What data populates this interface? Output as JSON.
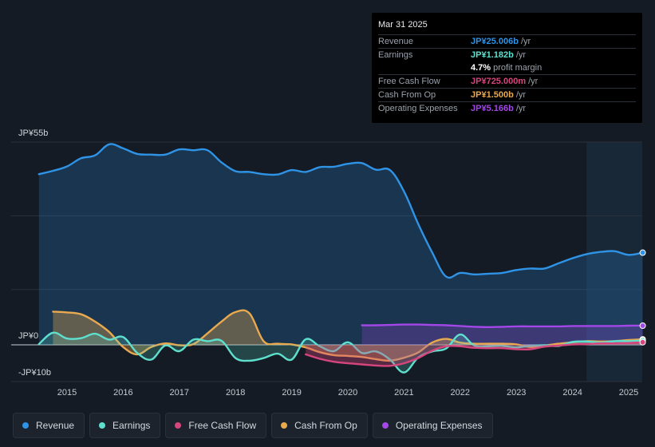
{
  "tooltip": {
    "date": "Mar 31 2025",
    "rows": [
      {
        "label": "Revenue",
        "value": "JP¥25.006b",
        "unit": "/yr",
        "color": "#2f93e6"
      },
      {
        "label": "Earnings",
        "value": "JP¥1.182b",
        "unit": "/yr",
        "color": "#5fe0cf"
      },
      {
        "label": "",
        "value": "4.7%",
        "unit": "profit margin",
        "color": "#ffffff"
      },
      {
        "label": "Free Cash Flow",
        "value": "JP¥725.000m",
        "unit": "/yr",
        "color": "#d6467d"
      },
      {
        "label": "Cash From Op",
        "value": "JP¥1.500b",
        "unit": "/yr",
        "color": "#e8a94f"
      },
      {
        "label": "Operating Expenses",
        "value": "JP¥5.166b",
        "unit": "/yr",
        "color": "#a347e8"
      }
    ]
  },
  "colors": {
    "revenue": "#2f93e6",
    "earnings": "#5fe0cf",
    "fcf": "#d6467d",
    "cfo": "#e8a94f",
    "opex": "#a347e8"
  },
  "legend": [
    {
      "label": "Revenue",
      "color": "#2f93e6"
    },
    {
      "label": "Earnings",
      "color": "#5fe0cf"
    },
    {
      "label": "Free Cash Flow",
      "color": "#d6467d"
    },
    {
      "label": "Cash From Op",
      "color": "#e8a94f"
    },
    {
      "label": "Operating Expenses",
      "color": "#a347e8"
    }
  ],
  "chart_data": {
    "type": "line",
    "title": "",
    "xlabel": "",
    "ylabel": "",
    "y_axis_labels": [
      "JP¥55b",
      "JP¥0",
      "-JP¥10b"
    ],
    "x_ticks": [
      "2015",
      "2016",
      "2017",
      "2018",
      "2019",
      "2020",
      "2021",
      "2022",
      "2023",
      "2024",
      "2025"
    ],
    "xlim": [
      2014.5,
      2025.25
    ],
    "ylim": [
      -10,
      55
    ],
    "forecast_shade_start": 2024.25,
    "series": [
      {
        "name": "Revenue",
        "key": "revenue",
        "fill": true,
        "x": [
          2014.5,
          2014.75,
          2015.0,
          2015.25,
          2015.5,
          2015.75,
          2016.0,
          2016.25,
          2016.5,
          2016.75,
          2017.0,
          2017.25,
          2017.5,
          2017.75,
          2018.0,
          2018.25,
          2018.5,
          2018.75,
          2019.0,
          2019.25,
          2019.5,
          2019.75,
          2020.0,
          2020.25,
          2020.5,
          2020.75,
          2021.0,
          2021.25,
          2021.5,
          2021.75,
          2022.0,
          2022.25,
          2022.5,
          2022.75,
          2023.0,
          2023.25,
          2023.5,
          2023.75,
          2024.0,
          2024.25,
          2024.5,
          2024.75,
          2025.0,
          2025.25
        ],
        "values": [
          46.3,
          47.2,
          48.4,
          50.6,
          51.4,
          54.4,
          53.3,
          51.8,
          51.6,
          51.6,
          53.0,
          52.8,
          52.8,
          49.5,
          47.1,
          46.9,
          46.3,
          46.2,
          47.4,
          46.9,
          48.2,
          48.3,
          49.1,
          49.3,
          47.5,
          47.4,
          41.6,
          32.9,
          25.1,
          18.5,
          19.5,
          19.1,
          19.3,
          19.5,
          20.3,
          20.7,
          20.7,
          22.1,
          23.5,
          24.6,
          25.2,
          25.4,
          24.4,
          25.0
        ]
      },
      {
        "name": "Earnings",
        "key": "earnings",
        "fill": true,
        "x": [
          2014.5,
          2014.75,
          2015.0,
          2015.25,
          2015.5,
          2015.75,
          2016.0,
          2016.25,
          2016.5,
          2016.75,
          2017.0,
          2017.25,
          2017.5,
          2017.75,
          2018.0,
          2018.25,
          2018.5,
          2018.75,
          2019.0,
          2019.25,
          2019.5,
          2019.75,
          2020.0,
          2020.25,
          2020.5,
          2020.75,
          2021.0,
          2021.25,
          2021.5,
          2021.75,
          2022.0,
          2022.25,
          2022.5,
          2022.75,
          2023.0,
          2023.25,
          2023.5,
          2023.75,
          2024.0,
          2024.25,
          2024.5,
          2024.75,
          2025.0,
          2025.25
        ],
        "values": [
          0.2,
          3.3,
          1.7,
          1.8,
          3.0,
          1.4,
          2.1,
          -2.2,
          -4.0,
          -0.2,
          -1.7,
          1.4,
          1.0,
          1.1,
          -3.6,
          -4.3,
          -3.6,
          -2.4,
          -4.0,
          1.5,
          -0.4,
          -1.7,
          0.7,
          -2.2,
          -1.8,
          -4.0,
          -7.5,
          -3.5,
          -1.8,
          -1.0,
          2.8,
          -0.2,
          -0.4,
          -0.3,
          -0.7,
          -0.3,
          -0.1,
          -0.3,
          0.8,
          0.9,
          0.6,
          1.0,
          1.0,
          1.2
        ]
      },
      {
        "name": "Free Cash Flow",
        "key": "fcf",
        "fill": true,
        "x": [
          2019.25,
          2019.5,
          2019.75,
          2020.0,
          2020.25,
          2020.5,
          2020.75,
          2021.0,
          2021.25,
          2021.5,
          2021.75,
          2022.0,
          2022.25,
          2022.5,
          2022.75,
          2023.0,
          2023.25,
          2023.5,
          2023.75,
          2024.0,
          2024.25,
          2024.5,
          2024.75,
          2025.0,
          2025.25
        ],
        "values": [
          -2.6,
          -3.8,
          -4.6,
          -5.0,
          -5.3,
          -5.6,
          -5.7,
          -5.0,
          -3.6,
          -1.6,
          -0.4,
          -0.4,
          -0.8,
          -0.9,
          -0.9,
          -1.2,
          -1.2,
          -0.5,
          -0.2,
          0.1,
          0.2,
          0.4,
          0.4,
          0.5,
          0.7
        ]
      },
      {
        "name": "Cash From Op",
        "key": "cfo",
        "fill": true,
        "x": [
          2014.75,
          2015.0,
          2015.25,
          2015.5,
          2015.75,
          2016.0,
          2016.25,
          2016.5,
          2016.75,
          2017.0,
          2017.25,
          2017.5,
          2017.75,
          2018.0,
          2018.25,
          2018.5,
          2018.75,
          2019.0,
          2019.25,
          2019.5,
          2019.75,
          2020.0,
          2020.25,
          2020.5,
          2020.75,
          2021.0,
          2021.25,
          2021.5,
          2021.75,
          2022.0,
          2022.25,
          2022.5,
          2022.75,
          2023.0,
          2023.25,
          2023.5,
          2023.75,
          2024.0,
          2024.25,
          2024.5,
          2024.75,
          2025.0,
          2025.25
        ],
        "values": [
          9.0,
          8.8,
          8.3,
          6.3,
          3.5,
          -0.6,
          -2.6,
          -0.6,
          0.4,
          -0.1,
          0.2,
          3.1,
          6.3,
          8.9,
          8.5,
          1.0,
          0.3,
          0.1,
          -0.7,
          -2.0,
          -2.8,
          -3.0,
          -3.3,
          -3.9,
          -4.3,
          -3.5,
          -2.1,
          0.6,
          1.6,
          0.6,
          0.3,
          0.3,
          0.3,
          0.1,
          -0.6,
          -0.2,
          0.3,
          0.7,
          1.0,
          0.9,
          1.0,
          1.3,
          1.5
        ]
      },
      {
        "name": "Operating Expenses",
        "key": "opex",
        "fill": true,
        "x": [
          2020.25,
          2020.5,
          2020.75,
          2021.0,
          2021.25,
          2021.5,
          2021.75,
          2022.0,
          2022.25,
          2022.5,
          2022.75,
          2023.0,
          2023.25,
          2023.5,
          2023.75,
          2024.0,
          2024.25,
          2024.5,
          2024.75,
          2025.0,
          2025.25
        ],
        "values": [
          5.3,
          5.3,
          5.4,
          5.5,
          5.5,
          5.4,
          5.3,
          5.1,
          4.9,
          4.8,
          4.9,
          5.0,
          5.0,
          5.0,
          5.0,
          5.1,
          5.1,
          5.1,
          5.1,
          5.2,
          5.2
        ]
      }
    ]
  }
}
